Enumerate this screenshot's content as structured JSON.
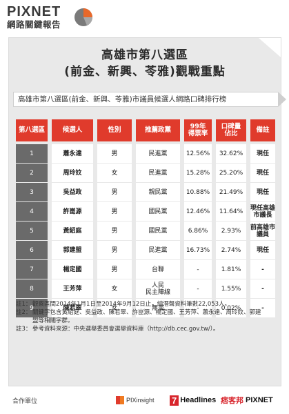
{
  "brand": {
    "top": "PIXNET",
    "bottom": "網路關鍵報告"
  },
  "title": {
    "line1": "高雄市第八選區",
    "line2": "(前金、新興、苓雅)觀戰重點"
  },
  "subtitle": "高雄市第八選區(前金、新興、苓雅)市議員候選人網路口碑排行榜",
  "table": {
    "headers": [
      "第八選區",
      "候選人",
      "性別",
      "推薦政黨",
      "99年\n得票率",
      "口碑量\n佔比",
      "備註"
    ],
    "rows": [
      {
        "idx": "1",
        "name": "蕭永達",
        "gender": "男",
        "party": "民進黨",
        "rate": "12.56%",
        "share": "32.62%",
        "note": "現任"
      },
      {
        "idx": "2",
        "name": "周玲妏",
        "gender": "女",
        "party": "民進黨",
        "rate": "15.28%",
        "share": "25.20%",
        "note": "現任"
      },
      {
        "idx": "3",
        "name": "吳益政",
        "gender": "男",
        "party": "親民黨",
        "rate": "10.88%",
        "share": "21.49%",
        "note": "現任"
      },
      {
        "idx": "4",
        "name": "許崑源",
        "gender": "男",
        "party": "國民黨",
        "rate": "12.46%",
        "share": "11.64%",
        "note": "現任高雄市議長"
      },
      {
        "idx": "5",
        "name": "黃紹庭",
        "gender": "男",
        "party": "國民黨",
        "rate": "6.86%",
        "share": "2.93%",
        "note": "前高雄市議員"
      },
      {
        "idx": "6",
        "name": "郭建盟",
        "gender": "男",
        "party": "民進黨",
        "rate": "16.73%",
        "share": "2.74%",
        "note": "現任"
      },
      {
        "idx": "7",
        "name": "楊定國",
        "gender": "男",
        "party": "台聯",
        "rate": "-",
        "share": "1.81%",
        "note": "-"
      },
      {
        "idx": "8",
        "name": "王芳萍",
        "gender": "女",
        "party": "人民\n民主陣線",
        "rate": "-",
        "share": "1.55%",
        "note": "-"
      },
      {
        "idx": "9",
        "name": "陳若翠",
        "gender": "女",
        "party": "無黨",
        "rate": "-",
        "share": "0.02%",
        "note": "-"
      }
    ]
  },
  "notes": [
    {
      "k": "註1：",
      "v": "觀察區間2014年1月1日至2014年9月12日止，總潛聲資料筆數22,053人。"
    },
    {
      "k": "註2：",
      "v": "關鍵字包含黃紹庭、吳益政、陳若翠、許崑源、楊定國、王芳萍、蕭永達、周玲妏、郭建盟等相關字群。"
    },
    {
      "k": "註3：",
      "v": "參考資料來源：中央選舉委員會選舉資料庫（http://db.cec.gov.tw/）。"
    }
  ],
  "footer": {
    "coop": "合作單位",
    "pix": "PIXinsight",
    "h7_num": "7",
    "h7_txt": "Headlines",
    "px_cn": "痞客邦",
    "px_en": "PIXNET"
  },
  "colors": {
    "accent": "#e03b2c",
    "idx_bg": "#6a6a6a",
    "panel": "#e9e9e9"
  }
}
